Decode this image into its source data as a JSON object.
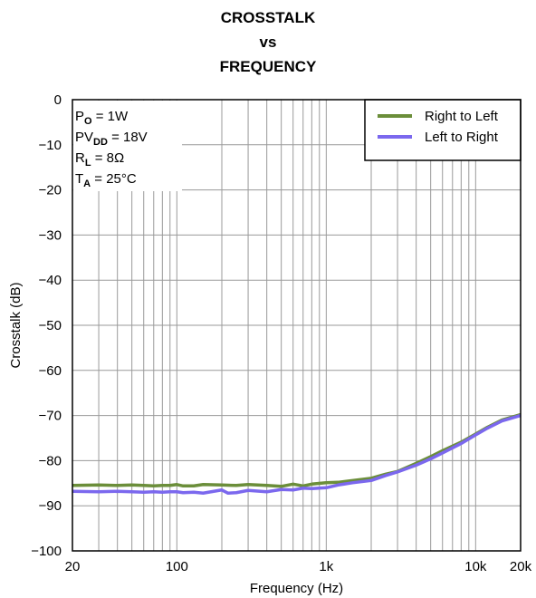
{
  "chart_data": {
    "type": "line",
    "title": [
      "CROSSTALK",
      "vs",
      "FREQUENCY"
    ],
    "xlabel": "Frequency (Hz)",
    "ylabel": "Crosstalk (dB)",
    "xscale": "log",
    "xlim": [
      20,
      20000
    ],
    "ylim": [
      -100,
      0
    ],
    "xticks": [
      {
        "value": 20,
        "label": "20"
      },
      {
        "value": 100,
        "label": "100"
      },
      {
        "value": 1000,
        "label": "1k"
      },
      {
        "value": 10000,
        "label": "10k"
      },
      {
        "value": 20000,
        "label": "20k"
      }
    ],
    "yticks": [
      {
        "value": 0,
        "label": "0"
      },
      {
        "value": -10,
        "label": "−10"
      },
      {
        "value": -20,
        "label": "−20"
      },
      {
        "value": -30,
        "label": "−30"
      },
      {
        "value": -40,
        "label": "−40"
      },
      {
        "value": -50,
        "label": "−50"
      },
      {
        "value": -60,
        "label": "−60"
      },
      {
        "value": -70,
        "label": "−70"
      },
      {
        "value": -80,
        "label": "−80"
      },
      {
        "value": -90,
        "label": "−90"
      },
      {
        "value": -100,
        "label": "−100"
      }
    ],
    "grid": true,
    "legend_position": "top-right",
    "conditions": [
      {
        "main": "P",
        "sub": "O",
        "rest": " = 1W"
      },
      {
        "main": "PV",
        "sub": "DD",
        "rest": " = 18V"
      },
      {
        "main": "R",
        "sub": "L",
        "rest": " = 8Ω"
      },
      {
        "main": "T",
        "sub": "A",
        "rest": " = 25°C"
      }
    ],
    "series": [
      {
        "name": "Right to Left",
        "color": "#6b8e3a",
        "x": [
          20,
          30,
          40,
          50,
          60,
          70,
          80,
          90,
          100,
          110,
          130,
          150,
          200,
          250,
          300,
          400,
          500,
          600,
          700,
          800,
          1000,
          1200,
          1500,
          2000,
          2500,
          3000,
          4000,
          5000,
          6000,
          8000,
          10000,
          12000,
          15000,
          20000
        ],
        "values": [
          -85.5,
          -85.4,
          -85.5,
          -85.4,
          -85.5,
          -85.6,
          -85.5,
          -85.5,
          -85.3,
          -85.6,
          -85.6,
          -85.3,
          -85.4,
          -85.5,
          -85.3,
          -85.5,
          -85.7,
          -85.2,
          -85.6,
          -85.2,
          -84.9,
          -84.8,
          -84.4,
          -83.9,
          -83.0,
          -82.4,
          -80.6,
          -79.1,
          -77.8,
          -75.9,
          -74.1,
          -72.6,
          -71.0,
          -69.8
        ]
      },
      {
        "name": "Left to Right",
        "color": "#7b68ee",
        "x": [
          20,
          30,
          40,
          50,
          60,
          70,
          80,
          90,
          100,
          110,
          130,
          150,
          200,
          220,
          250,
          300,
          400,
          500,
          600,
          700,
          800,
          1000,
          1200,
          1500,
          2000,
          2500,
          3000,
          4000,
          5000,
          6000,
          8000,
          10000,
          12000,
          15000,
          20000
        ],
        "values": [
          -86.8,
          -86.9,
          -86.8,
          -86.9,
          -87.0,
          -86.9,
          -87.0,
          -86.9,
          -86.9,
          -87.1,
          -87.0,
          -87.2,
          -86.5,
          -87.2,
          -87.1,
          -86.6,
          -86.9,
          -86.4,
          -86.5,
          -86.1,
          -86.2,
          -86.0,
          -85.4,
          -84.9,
          -84.4,
          -83.3,
          -82.5,
          -81.0,
          -79.6,
          -78.3,
          -76.2,
          -74.3,
          -72.8,
          -71.2,
          -70.0
        ]
      }
    ]
  }
}
